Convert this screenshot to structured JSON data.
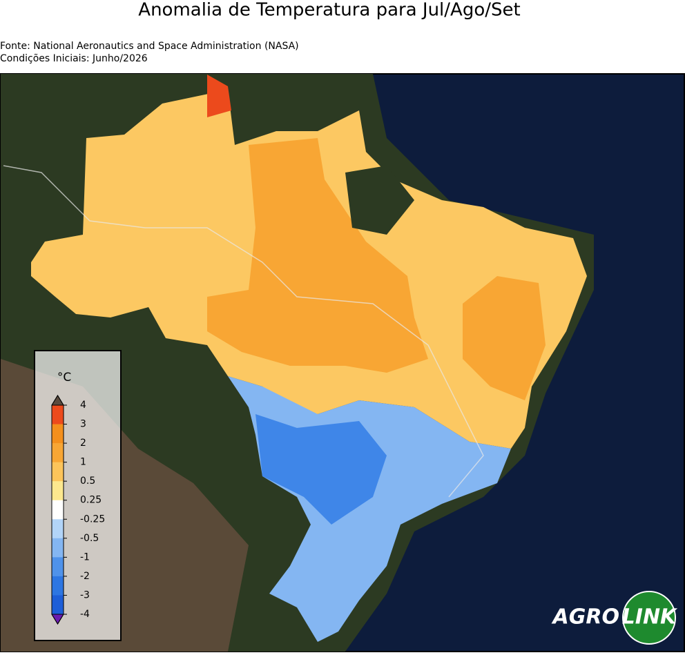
{
  "header": {
    "title": "Anomalia de Temperatura para Jul/Ago/Set",
    "source": "Fonte: National Aeronautics and Space Administration (NASA)",
    "initial": "Condições Iniciais: Junho/2026"
  },
  "colorbar": {
    "unit": "°C",
    "ticks": [
      4,
      3,
      2,
      1,
      0.5,
      0.25,
      -0.25,
      -0.5,
      -1,
      -2,
      -3,
      -4
    ],
    "colors": [
      "#ec4a1c",
      "#f48f1c",
      "#f8a634",
      "#fcc45a",
      "#fde88e",
      "#ffffff",
      "#b2d4f8",
      "#84b6f2",
      "#4f92ea",
      "#2d76e2",
      "#1d5ed8"
    ],
    "over_color": "#5a4a3e",
    "under_color": "#6a1cb0"
  },
  "logo": {
    "left": "AGRO",
    "right": "LINK"
  }
}
